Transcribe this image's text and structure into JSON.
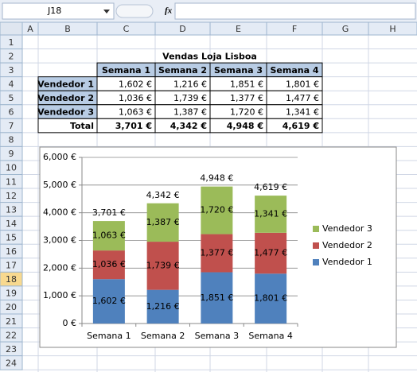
{
  "spreadsheet": {
    "name_box": "J18",
    "formula_icon": "fx",
    "columns": [
      "A",
      "B",
      "C",
      "D",
      "E",
      "F",
      "G",
      "H"
    ],
    "rows": [
      1,
      2,
      3,
      4,
      5,
      6,
      7,
      8,
      9,
      10,
      11,
      12,
      13,
      14,
      15,
      16,
      17,
      18,
      19,
      20,
      21,
      22,
      23,
      24
    ],
    "selected_row": 18,
    "table": {
      "title": "Vendas Loja Lisboa",
      "header": [
        "Semana 1",
        "Semana 2",
        "Semana 3",
        "Semana 4"
      ],
      "rows": [
        [
          "Vendedor 1",
          "1,602 €",
          "1,216 €",
          "1,851 €",
          "1,801 €"
        ],
        [
          "Vendedor 2",
          "1,036 €",
          "1,739 €",
          "1,377 €",
          "1,477 €"
        ],
        [
          "Vendedor 3",
          "1,063 €",
          "1,387 €",
          "1,720 €",
          "1,341 €"
        ],
        [
          "Total",
          "3,701 €",
          "4,342 €",
          "4,948 €",
          "4,619 €"
        ]
      ]
    }
  },
  "chart_data": {
    "type": "stacked_bar",
    "categories": [
      "Semana 1",
      "Semana 2",
      "Semana 3",
      "Semana 4"
    ],
    "series": [
      {
        "name": "Vendedor 1",
        "color": "#4f81bd",
        "values": [
          1602,
          1216,
          1851,
          1801
        ],
        "value_labels": [
          "1,602 €",
          "1,216 €",
          "1,851 €",
          "1,801 €"
        ]
      },
      {
        "name": "Vendedor 2",
        "color": "#c0504d",
        "values": [
          1036,
          1739,
          1377,
          1477
        ],
        "value_labels": [
          "1,036 €",
          "1,739 €",
          "1,377 €",
          "1,477 €"
        ]
      },
      {
        "name": "Vendedor 3",
        "color": "#9bbb59",
        "values": [
          1063,
          1387,
          1720,
          1341
        ],
        "value_labels": [
          "1,063 €",
          "1,387 €",
          "1,720 €",
          "1,341 €"
        ]
      }
    ],
    "totals": [
      3701,
      4342,
      4948,
      4619
    ],
    "total_labels": [
      "3,701 €",
      "4,342 €",
      "4,948 €",
      "4,619 €"
    ],
    "ylim": [
      0,
      6000
    ],
    "yticks": [
      {
        "value": 0,
        "label": "0 €"
      },
      {
        "value": 1000,
        "label": "1,000 €"
      },
      {
        "value": 2000,
        "label": "2,000 €"
      },
      {
        "value": 3000,
        "label": "3,000 €"
      },
      {
        "value": 4000,
        "label": "4,000 €"
      },
      {
        "value": 5000,
        "label": "5,000 €"
      },
      {
        "value": 6000,
        "label": "6,000 €"
      }
    ],
    "grid": true,
    "legend": "right"
  }
}
